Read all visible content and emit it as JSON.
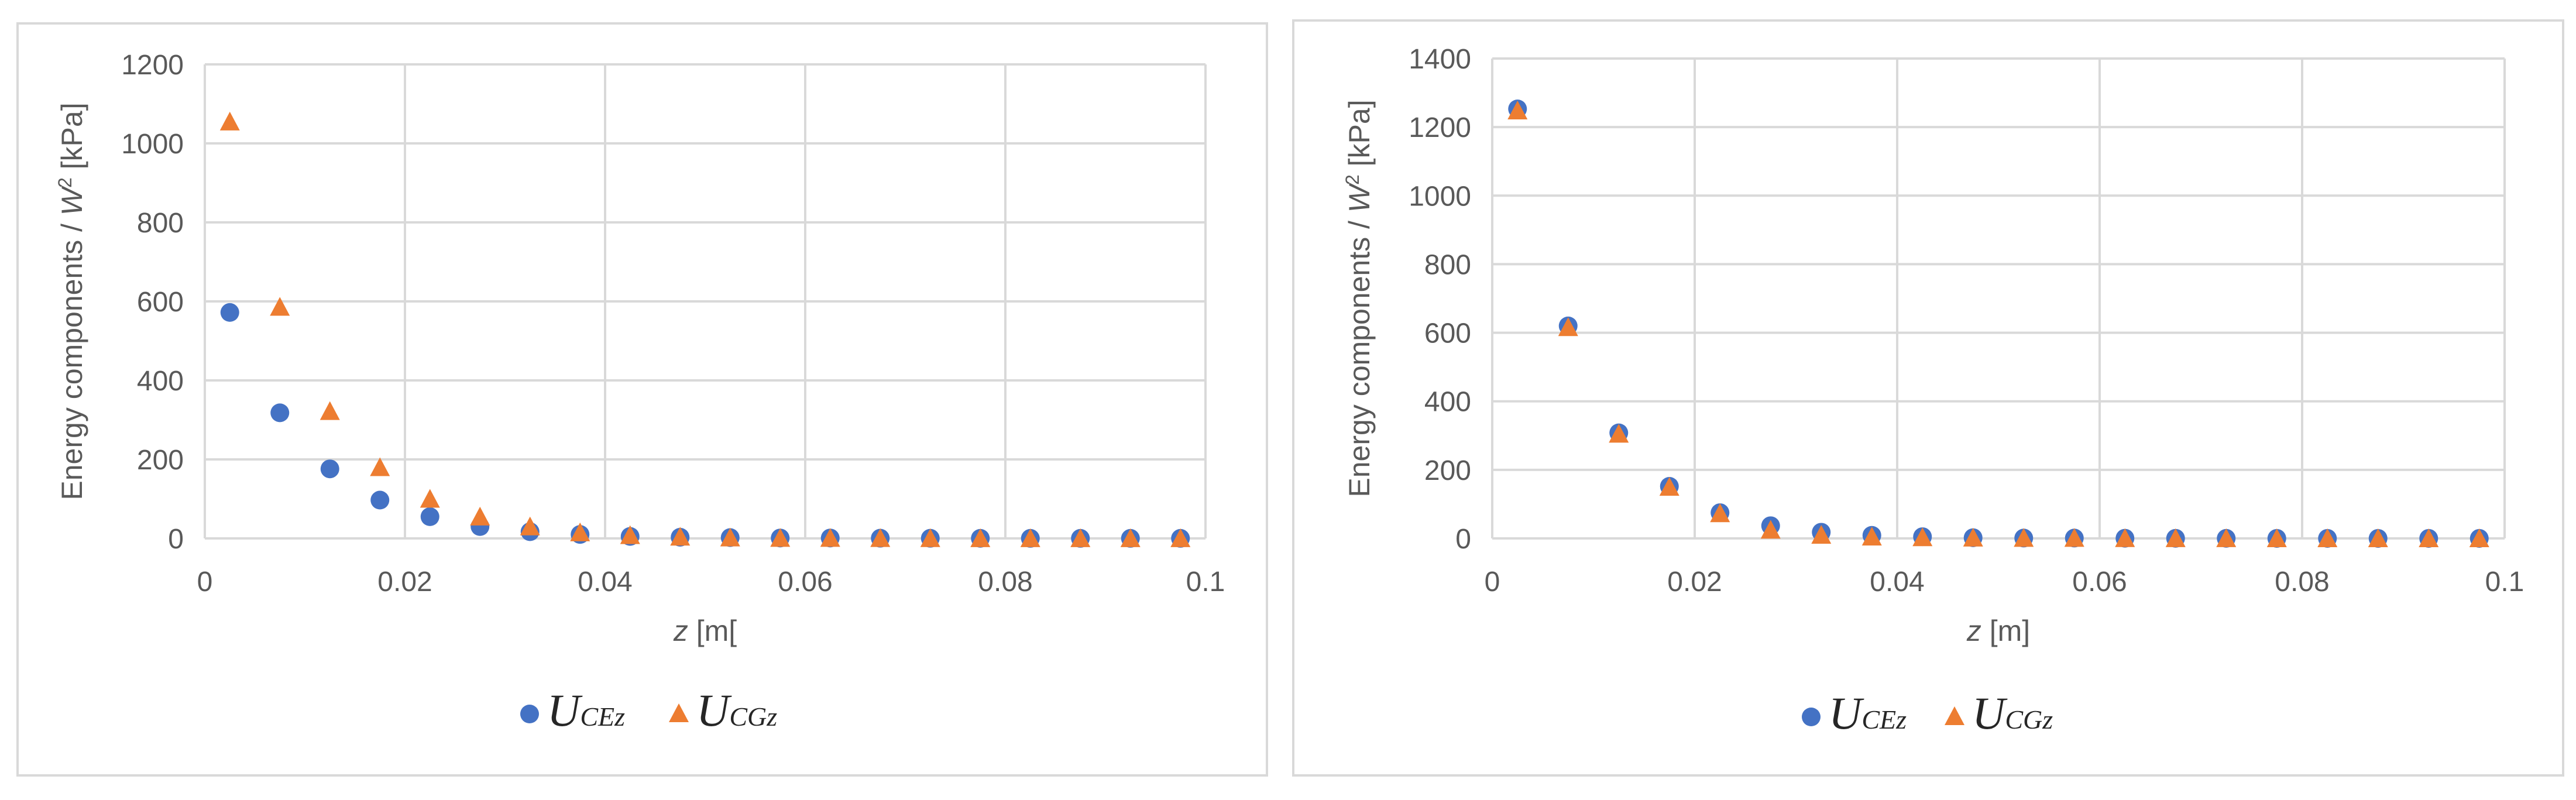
{
  "chart_data": [
    {
      "type": "scatter",
      "title": "",
      "ylabel_parts": [
        "Energy components / ",
        "W",
        "2",
        " [kPa]"
      ],
      "xlabel_parts": [
        "z",
        " [m["
      ],
      "xlim": [
        0,
        0.1
      ],
      "ylim": [
        0,
        1200
      ],
      "x_ticks": [
        "0",
        "0.02",
        "0.04",
        "0.06",
        "0.08",
        "0.1"
      ],
      "y_ticks": [
        "0",
        "200",
        "400",
        "600",
        "800",
        "1000",
        "1200"
      ],
      "grid": true,
      "legend_position": "bottom",
      "x": [
        0.0025,
        0.0075,
        0.0125,
        0.0175,
        0.0225,
        0.0275,
        0.0325,
        0.0375,
        0.0425,
        0.0475,
        0.0525,
        0.0575,
        0.0625,
        0.0675,
        0.0725,
        0.0775,
        0.0825,
        0.0875,
        0.0925,
        0.0975
      ],
      "series": [
        {
          "name_main": "U",
          "name_sub": "CEz",
          "marker": "circle",
          "color": "#4472C4",
          "values": [
            572,
            318,
            176,
            97,
            55,
            30,
            17,
            10,
            5,
            3,
            2,
            1,
            1,
            0.5,
            0.3,
            0.2,
            0.1,
            0.1,
            0.1,
            0.1
          ]
        },
        {
          "name_main": "U",
          "name_sub": "CGz",
          "marker": "triangle",
          "color": "#ED7D31",
          "values": [
            1055,
            586,
            322,
            180,
            100,
            55,
            30,
            15,
            8,
            4,
            2,
            1,
            1,
            0.5,
            0.3,
            0.2,
            0.1,
            0.1,
            0.1,
            0.1
          ]
        }
      ]
    },
    {
      "type": "scatter",
      "title": "",
      "ylabel_parts": [
        "Energy components / ",
        "W",
        "2",
        " [kPa]"
      ],
      "xlabel_parts": [
        "z",
        " [m]"
      ],
      "xlim": [
        0,
        0.1
      ],
      "ylim": [
        0,
        1400
      ],
      "x_ticks": [
        "0",
        "0.02",
        "0.04",
        "0.06",
        "0.08",
        "0.1"
      ],
      "y_ticks": [
        "0",
        "200",
        "400",
        "600",
        "800",
        "1000",
        "1200",
        "1400"
      ],
      "grid": true,
      "legend_position": "bottom",
      "x": [
        0.0025,
        0.0075,
        0.0125,
        0.0175,
        0.0225,
        0.0275,
        0.0325,
        0.0375,
        0.0425,
        0.0475,
        0.0525,
        0.0575,
        0.0625,
        0.0675,
        0.0725,
        0.0775,
        0.0825,
        0.0875,
        0.0925,
        0.0975
      ],
      "series": [
        {
          "name_main": "U",
          "name_sub": "CEz",
          "marker": "circle",
          "color": "#4472C4",
          "values": [
            1253,
            620,
            308,
            152,
            75,
            37,
            18,
            9,
            5,
            2,
            1,
            1,
            0.5,
            0.3,
            0.2,
            0.1,
            0.1,
            0.1,
            0.1,
            0.1
          ]
        },
        {
          "name_main": "U",
          "name_sub": "CGz",
          "marker": "triangle",
          "color": "#ED7D31",
          "values": [
            1248,
            616,
            305,
            150,
            73,
            25,
            10,
            5,
            3,
            2,
            1,
            1,
            0.5,
            0.3,
            0.2,
            0.1,
            0.1,
            0.1,
            0.1,
            0.1
          ]
        }
      ]
    }
  ]
}
